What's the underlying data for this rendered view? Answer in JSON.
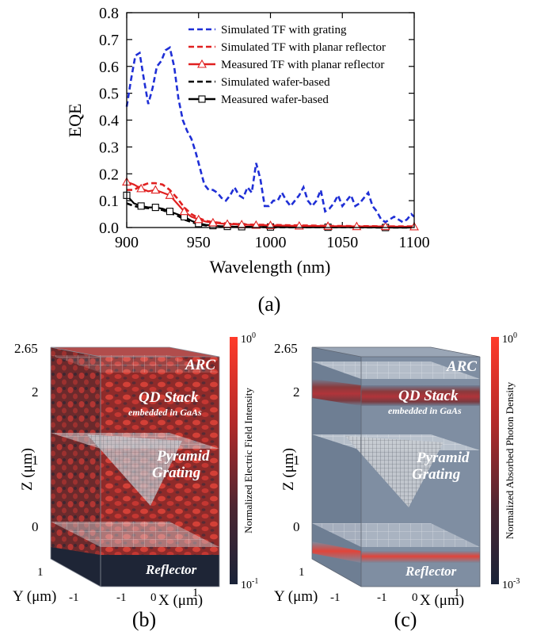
{
  "chart_data": {
    "type": "line",
    "xlabel": "Wavelength (nm)",
    "ylabel": "EQE",
    "xlim": [
      900,
      1100
    ],
    "ylim": [
      0,
      0.8
    ],
    "xticks": [
      900,
      950,
      1000,
      1050,
      1100
    ],
    "yticks": [
      0.0,
      0.1,
      0.2,
      0.3,
      0.4,
      0.5,
      0.6,
      0.7,
      0.8
    ],
    "grid": false,
    "legend_position": "top-right",
    "series": [
      {
        "name": "Simulated TF with grating",
        "color": "#1f2fd6",
        "style": "dashed",
        "marker": "none",
        "x": [
          900,
          903,
          906,
          909,
          912,
          915,
          918,
          921,
          924,
          927,
          930,
          933,
          936,
          939,
          942,
          945,
          948,
          951,
          954,
          957,
          960,
          963,
          966,
          969,
          972,
          975,
          978,
          981,
          984,
          987,
          990,
          993,
          996,
          999,
          1002,
          1005,
          1008,
          1011,
          1014,
          1017,
          1020,
          1023,
          1026,
          1029,
          1032,
          1035,
          1038,
          1041,
          1044,
          1047,
          1050,
          1053,
          1056,
          1059,
          1062,
          1065,
          1068,
          1071,
          1074,
          1077,
          1080,
          1083,
          1086,
          1089,
          1092,
          1095,
          1098,
          1100
        ],
        "y": [
          0.45,
          0.55,
          0.64,
          0.65,
          0.55,
          0.46,
          0.52,
          0.6,
          0.62,
          0.66,
          0.67,
          0.6,
          0.48,
          0.4,
          0.36,
          0.33,
          0.28,
          0.22,
          0.16,
          0.14,
          0.14,
          0.13,
          0.11,
          0.1,
          0.12,
          0.15,
          0.12,
          0.11,
          0.15,
          0.13,
          0.24,
          0.18,
          0.08,
          0.08,
          0.1,
          0.1,
          0.13,
          0.1,
          0.08,
          0.1,
          0.12,
          0.15,
          0.1,
          0.08,
          0.1,
          0.14,
          0.06,
          0.07,
          0.09,
          0.12,
          0.08,
          0.1,
          0.12,
          0.08,
          0.09,
          0.11,
          0.13,
          0.08,
          0.06,
          0.03,
          0.02,
          0.03,
          0.04,
          0.03,
          0.02,
          0.03,
          0.05,
          0.04
        ]
      },
      {
        "name": "Simulated TF with planar reflector",
        "color": "#e02020",
        "style": "dashed",
        "marker": "none",
        "x": [
          900,
          905,
          910,
          915,
          920,
          925,
          930,
          935,
          940,
          945,
          950,
          955,
          960,
          970,
          980,
          990,
          1000,
          1010,
          1020,
          1030,
          1040,
          1050,
          1060,
          1070,
          1080,
          1090,
          1100
        ],
        "y": [
          0.14,
          0.14,
          0.155,
          0.165,
          0.165,
          0.16,
          0.14,
          0.11,
          0.075,
          0.05,
          0.035,
          0.025,
          0.02,
          0.015,
          0.012,
          0.01,
          0.01,
          0.009,
          0.008,
          0.007,
          0.006,
          0.006,
          0.005,
          0.005,
          0.004,
          0.004,
          0.004
        ]
      },
      {
        "name": "Measured TF with planar reflector",
        "color": "#e02020",
        "style": "solid",
        "marker": "triangle",
        "x": [
          900,
          905,
          910,
          915,
          920,
          925,
          930,
          935,
          940,
          945,
          950,
          955,
          960,
          965,
          970,
          975,
          980,
          985,
          990,
          995,
          1000,
          1010,
          1020,
          1030,
          1040,
          1050,
          1060,
          1070,
          1080,
          1090,
          1100
        ],
        "y": [
          0.17,
          0.16,
          0.145,
          0.135,
          0.14,
          0.13,
          0.12,
          0.09,
          0.06,
          0.04,
          0.03,
          0.022,
          0.018,
          0.015,
          0.013,
          0.012,
          0.011,
          0.01,
          0.009,
          0.009,
          0.008,
          0.007,
          0.006,
          0.006,
          0.005,
          0.005,
          0.004,
          0.004,
          0.004,
          0.003,
          0.003
        ]
      },
      {
        "name": "Simulated wafer-based",
        "color": "#000000",
        "style": "dashed",
        "marker": "none",
        "x": [
          900,
          905,
          910,
          915,
          920,
          925,
          930,
          935,
          940,
          945,
          950,
          955,
          960,
          970,
          980,
          990,
          1000,
          1020,
          1040,
          1060,
          1080,
          1100
        ],
        "y": [
          0.09,
          0.08,
          0.075,
          0.072,
          0.07,
          0.065,
          0.055,
          0.045,
          0.03,
          0.02,
          0.012,
          0.008,
          0.005,
          0.003,
          0.002,
          0.002,
          0.001,
          0.001,
          0.001,
          0.001,
          0.0,
          0.0
        ]
      },
      {
        "name": "Measured wafer-based",
        "color": "#000000",
        "style": "solid",
        "marker": "square",
        "x": [
          900,
          905,
          910,
          915,
          920,
          925,
          930,
          935,
          940,
          945,
          950,
          955,
          960,
          965,
          970,
          975,
          980,
          990,
          1000,
          1020,
          1040,
          1060,
          1080,
          1100
        ],
        "y": [
          0.12,
          0.09,
          0.08,
          0.075,
          0.075,
          0.07,
          0.06,
          0.05,
          0.04,
          0.025,
          0.015,
          0.01,
          0.007,
          0.005,
          0.004,
          0.003,
          0.003,
          0.002,
          0.002,
          0.001,
          0.001,
          0.001,
          0.0,
          0.0
        ]
      }
    ]
  },
  "captions": {
    "a": "(a)",
    "b": "(b)",
    "c": "(c)"
  },
  "panel_b": {
    "z_top_tick": "2.65",
    "z_ticks": [
      "2",
      "1",
      "0"
    ],
    "zlabel": "Z (μm)",
    "ylabel": "Y (μm)",
    "y_ticks": [
      "1",
      "-1"
    ],
    "x_ticks": [
      "-1",
      "0",
      "1"
    ],
    "xlabel": "X (μm)",
    "layer_labels": {
      "arc": "ARC",
      "qd": "QD Stack",
      "qd_sub": "embedded in GaAs",
      "pyr1": "Pyramid",
      "pyr2": "Grating",
      "ref": "Reflector"
    },
    "colorbar": {
      "label": "Normalized Electric Field Intensity",
      "top_base": "10",
      "top_exp": "0",
      "bottom_base": "10",
      "bottom_exp": "-1"
    }
  },
  "panel_c": {
    "z_top_tick": "2.65",
    "z_ticks": [
      "2",
      "1",
      "0"
    ],
    "zlabel": "Z (μm)",
    "ylabel": "Y (μm)",
    "y_ticks": [
      "1",
      "-1"
    ],
    "x_ticks": [
      "-1",
      "0",
      "1"
    ],
    "xlabel": "X (μm)",
    "layer_labels": {
      "arc": "ARC",
      "qd": "QD Stack",
      "qd_sub": "embedded in GaAs",
      "pyr1": "Pyramid",
      "pyr2": "Grating",
      "ref": "Reflector"
    },
    "colorbar": {
      "label": "Normalized Absorbed Photon Density",
      "top_base": "10",
      "top_exp": "0",
      "bottom_base": "10",
      "bottom_exp": "-3"
    }
  }
}
